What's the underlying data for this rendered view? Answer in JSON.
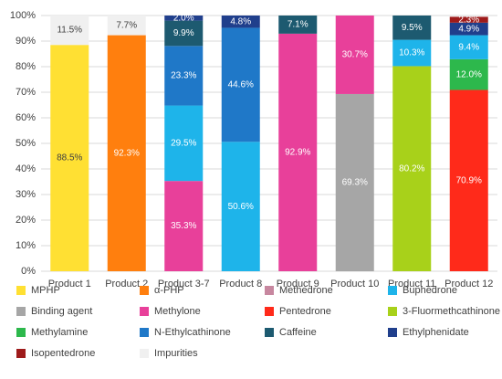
{
  "chart_data": {
    "type": "stacked_bar",
    "categories": [
      "Product 1",
      "Product 2",
      "Product 3-7",
      "Product 8",
      "Product 9",
      "Product 10",
      "Product 11",
      "Product 12"
    ],
    "ylim": [
      0,
      100
    ],
    "yticks": [
      {
        "value": 0,
        "label": "0%"
      },
      {
        "value": 10,
        "label": "10%"
      },
      {
        "value": 20,
        "label": "20%"
      },
      {
        "value": 30,
        "label": "30%"
      },
      {
        "value": 40,
        "label": "40%"
      },
      {
        "value": 50,
        "label": "50%"
      },
      {
        "value": 60,
        "label": "60%"
      },
      {
        "value": 70,
        "label": "70%"
      },
      {
        "value": 80,
        "label": "80%"
      },
      {
        "value": 90,
        "label": "90%"
      },
      {
        "value": 100,
        "label": "100%"
      }
    ],
    "grid": true,
    "legend": "bottom",
    "series": [
      {
        "name": "MPHP",
        "color": "#FFE033",
        "values": [
          88.5,
          null,
          null,
          null,
          null,
          null,
          null,
          null
        ],
        "value_labels": [
          "88.5%",
          null,
          null,
          null,
          null,
          null,
          null,
          null
        ]
      },
      {
        "name": "α-PHP",
        "color": "#FF7F0E",
        "values": [
          null,
          92.3,
          null,
          null,
          null,
          null,
          null,
          null
        ],
        "value_labels": [
          null,
          "92.3%",
          null,
          null,
          null,
          null,
          null,
          null
        ]
      },
      {
        "name": "Methedrone",
        "color": "#C7879F",
        "values": [
          null,
          null,
          null,
          null,
          null,
          null,
          null,
          null
        ]
      },
      {
        "name": "Buphedrone",
        "color": "#1EB4EA",
        "values": [
          null,
          null,
          29.5,
          50.6,
          null,
          null,
          10.3,
          9.4
        ],
        "value_labels": [
          null,
          null,
          "29.5%",
          "50.6%",
          null,
          null,
          "10.3%",
          "9.4%"
        ]
      },
      {
        "name": "Binding agent",
        "color": "#A6A6A6",
        "values": [
          null,
          null,
          null,
          null,
          null,
          69.3,
          null,
          null
        ],
        "value_labels": [
          null,
          null,
          null,
          null,
          null,
          "69.3%",
          null,
          null
        ]
      },
      {
        "name": "Methylone",
        "color": "#E8409A",
        "values": [
          null,
          null,
          35.3,
          null,
          92.9,
          30.7,
          null,
          null
        ],
        "value_labels": [
          null,
          null,
          "35.3%",
          null,
          "92.9%",
          "30.7%",
          null,
          null
        ]
      },
      {
        "name": "Pentedrone",
        "color": "#FF2A1A",
        "values": [
          null,
          null,
          null,
          null,
          null,
          null,
          null,
          70.9
        ],
        "value_labels": [
          null,
          null,
          null,
          null,
          null,
          null,
          null,
          "70.9%"
        ]
      },
      {
        "name": "3-Fluormethcathinone",
        "color": "#A8D11A",
        "values": [
          null,
          null,
          null,
          null,
          null,
          null,
          80.2,
          null
        ],
        "value_labels": [
          null,
          null,
          null,
          null,
          null,
          null,
          "80.2%",
          null
        ]
      },
      {
        "name": "Methylamine",
        "color": "#2DB84C",
        "values": [
          null,
          null,
          null,
          null,
          null,
          null,
          null,
          12.0
        ],
        "value_labels": [
          null,
          null,
          null,
          null,
          null,
          null,
          null,
          "12.0%"
        ]
      },
      {
        "name": "N-Ethylcathinone",
        "color": "#1F78C8",
        "values": [
          null,
          null,
          23.3,
          44.6,
          null,
          null,
          null,
          null
        ],
        "value_labels": [
          null,
          null,
          "23.3%",
          "44.6%",
          null,
          null,
          null,
          null
        ]
      },
      {
        "name": "Caffeine",
        "color": "#1D5A70",
        "values": [
          null,
          null,
          9.9,
          null,
          7.1,
          null,
          9.5,
          null
        ],
        "value_labels": [
          null,
          null,
          "9.9%",
          null,
          "7.1%",
          null,
          "9.5%",
          null
        ]
      },
      {
        "name": "Ethylphenidate",
        "color": "#203F8C",
        "values": [
          null,
          null,
          2.0,
          4.8,
          null,
          null,
          null,
          4.9
        ],
        "value_labels": [
          null,
          null,
          "2.0%",
          "4.8%",
          null,
          null,
          null,
          "4.9%"
        ]
      },
      {
        "name": "Isopentedrone",
        "color": "#9E1B1B",
        "values": [
          null,
          null,
          null,
          null,
          null,
          null,
          null,
          2.3
        ],
        "value_labels": [
          null,
          null,
          null,
          null,
          null,
          null,
          null,
          "2.3%"
        ]
      },
      {
        "name": "Impurities",
        "color": "#F0F0F0",
        "values": [
          11.5,
          7.7,
          null,
          null,
          null,
          null,
          null,
          null
        ],
        "value_labels": [
          "11.5%",
          "7.7%",
          null,
          null,
          null,
          null,
          null,
          null
        ]
      }
    ]
  }
}
